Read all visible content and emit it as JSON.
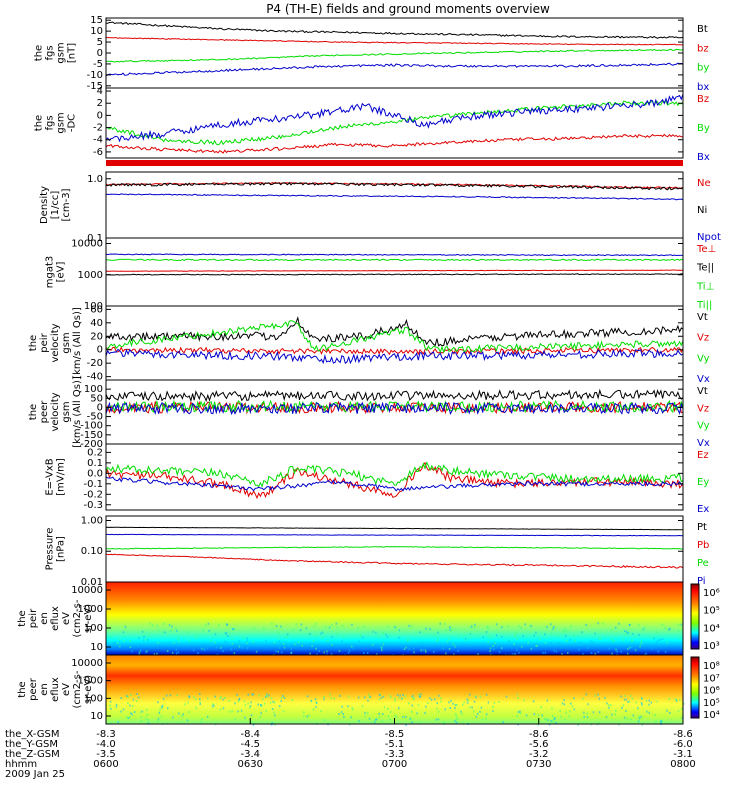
{
  "title": "P4 (TH-E) fields and ground moments overview",
  "colors": {
    "black": "#000000",
    "red": "#e00000",
    "green": "#00dd00",
    "blue": "#0000cc"
  },
  "chart_data": [
    {
      "id": "fgs-gsm",
      "type": "line",
      "ylabel": [
        "the",
        "fgs",
        "gsm",
        "[nT]"
      ],
      "yticks": [
        "15",
        "10",
        "5",
        "0",
        "-5",
        "-10",
        "-15"
      ],
      "ylim": [
        -16,
        16
      ],
      "series": [
        {
          "name": "Bt",
          "color": "black",
          "points": [
            [
              0,
              14
            ],
            [
              0.1,
              12.5
            ],
            [
              0.2,
              11
            ],
            [
              0.3,
              10
            ],
            [
              0.4,
              9.5
            ],
            [
              0.5,
              9
            ],
            [
              0.6,
              8.5
            ],
            [
              0.7,
              8
            ],
            [
              0.8,
              7.5
            ],
            [
              0.9,
              7.3
            ],
            [
              1,
              7
            ]
          ],
          "noise": 0.4
        },
        {
          "name": "bz",
          "color": "red",
          "points": [
            [
              0,
              7
            ],
            [
              0.2,
              6
            ],
            [
              0.4,
              5
            ],
            [
              0.6,
              4.5
            ],
            [
              0.8,
              4
            ],
            [
              1,
              3.8
            ]
          ],
          "noise": 0.2
        },
        {
          "name": "by",
          "color": "green",
          "points": [
            [
              0,
              -4
            ],
            [
              0.2,
              -3
            ],
            [
              0.4,
              -1
            ],
            [
              0.6,
              0
            ],
            [
              0.8,
              1
            ],
            [
              1,
              1.5
            ]
          ],
          "noise": 0.3
        },
        {
          "name": "bx",
          "color": "blue",
          "points": [
            [
              0,
              -10
            ],
            [
              0.2,
              -8
            ],
            [
              0.4,
              -6
            ],
            [
              0.5,
              -5.5
            ],
            [
              0.6,
              -6
            ],
            [
              0.8,
              -6
            ],
            [
              1,
              -5
            ]
          ],
          "noise": 0.5
        }
      ]
    },
    {
      "id": "fgs-gsm-dc",
      "type": "line",
      "ylabel": [
        "the",
        "fgs",
        "gsm",
        "-DC"
      ],
      "yticks": [
        "4",
        "2",
        "0",
        "-2",
        "-4",
        "-6"
      ],
      "ylim": [
        -7,
        4.5
      ],
      "series": [
        {
          "name": "Bz",
          "color": "red",
          "points": [
            [
              0,
              -5
            ],
            [
              0.1,
              -5.6
            ],
            [
              0.2,
              -6
            ],
            [
              0.3,
              -5.5
            ],
            [
              0.4,
              -4.8
            ],
            [
              0.5,
              -5
            ],
            [
              0.6,
              -4.4
            ],
            [
              0.7,
              -4
            ],
            [
              0.8,
              -3.8
            ],
            [
              0.9,
              -3.4
            ],
            [
              1,
              -3.3
            ]
          ],
          "noise": 0.25
        },
        {
          "name": "By",
          "color": "green",
          "points": [
            [
              0,
              -2
            ],
            [
              0.1,
              -4
            ],
            [
              0.2,
              -4.5
            ],
            [
              0.3,
              -3.5
            ],
            [
              0.4,
              -2
            ],
            [
              0.5,
              -1
            ],
            [
              0.6,
              0
            ],
            [
              0.7,
              0.8
            ],
            [
              0.8,
              1.5
            ],
            [
              0.9,
              2
            ],
            [
              1,
              2
            ]
          ],
          "noise": 0.35
        },
        {
          "name": "Bx",
          "color": "blue",
          "points": [
            [
              0,
              -4
            ],
            [
              0.1,
              -3
            ],
            [
              0.2,
              -1.5
            ],
            [
              0.35,
              0
            ],
            [
              0.45,
              1.5
            ],
            [
              0.55,
              -1.5
            ],
            [
              0.65,
              0
            ],
            [
              0.75,
              0.8
            ],
            [
              0.85,
              1.3
            ],
            [
              0.95,
              2
            ],
            [
              1,
              3
            ]
          ],
          "noise": 0.6
        }
      ]
    },
    {
      "id": "density",
      "type": "line",
      "scale": "log",
      "ylabel": [
        "Density",
        "[1/cc]",
        "[cm-3]"
      ],
      "yticks": [
        "1.0",
        "0.1"
      ],
      "ytick_values": [
        1.0,
        0.1
      ],
      "ylim": [
        0.1,
        1.3
      ],
      "series": [
        {
          "name": "Ne",
          "color": "red",
          "points": [
            [
              0,
              0.8
            ],
            [
              0.3,
              0.85
            ],
            [
              0.6,
              0.8
            ],
            [
              1,
              0.7
            ]
          ],
          "noise": 0.02
        },
        {
          "name": "Ni",
          "color": "black",
          "points": [
            [
              0,
              0.78
            ],
            [
              0.3,
              0.83
            ],
            [
              0.6,
              0.78
            ],
            [
              1,
              0.68
            ]
          ],
          "noise": 0.04
        },
        {
          "name": "Npot",
          "color": "blue",
          "points": [
            [
              0,
              0.55
            ],
            [
              0.3,
              0.52
            ],
            [
              0.6,
              0.5
            ],
            [
              1,
              0.45
            ]
          ],
          "noise": 0.01
        }
      ]
    },
    {
      "id": "temperature",
      "type": "line",
      "scale": "log",
      "ylabel": [
        "mgat3",
        "[eV]"
      ],
      "yticks": [
        "10000",
        "1000",
        "100"
      ],
      "ytick_values": [
        10000,
        1000,
        100
      ],
      "ylim": [
        100,
        15000
      ],
      "series": [
        {
          "name": "Te⊥",
          "color": "red",
          "points": [
            [
              0,
              1300
            ],
            [
              1,
              1400
            ]
          ],
          "noise": 20
        },
        {
          "name": "Te||",
          "color": "black",
          "points": [
            [
              0,
              1000
            ],
            [
              1,
              1050
            ]
          ],
          "noise": 30
        },
        {
          "name": "Ti⊥",
          "color": "green",
          "points": [
            [
              0,
              3000
            ],
            [
              1,
              3000
            ]
          ],
          "noise": 150
        },
        {
          "name": "Ti||",
          "color": "blue",
          "points": [
            [
              0,
              4500
            ],
            [
              1,
              4200
            ]
          ],
          "noise": 150
        }
      ],
      "legend_extra": [
        "Ti⊥",
        "Ti||"
      ]
    },
    {
      "id": "peir-velocity",
      "type": "line",
      "ylabel": [
        "the",
        "peir",
        "velocity",
        "gsm",
        "[km/s (All Qs)]"
      ],
      "yticks": [
        "60",
        "40",
        "20",
        "0",
        "-20",
        "-40"
      ],
      "ylim": [
        -45,
        65
      ],
      "series": [
        {
          "name": "Vt",
          "color": "black",
          "points": [
            [
              0,
              20
            ],
            [
              0.3,
              20
            ],
            [
              0.33,
              45
            ],
            [
              0.36,
              15
            ],
            [
              0.45,
              20
            ],
            [
              0.52,
              38
            ],
            [
              0.56,
              10
            ],
            [
              0.62,
              15
            ],
            [
              0.7,
              20
            ],
            [
              1,
              30
            ]
          ],
          "noise": 6
        },
        {
          "name": "Vz",
          "color": "red",
          "points": [
            [
              0,
              0
            ],
            [
              0.5,
              -3
            ],
            [
              1,
              0
            ]
          ],
          "noise": 4
        },
        {
          "name": "Vy",
          "color": "green",
          "points": [
            [
              0,
              5
            ],
            [
              0.33,
              40
            ],
            [
              0.36,
              0
            ],
            [
              0.52,
              30
            ],
            [
              0.56,
              0
            ],
            [
              1,
              10
            ]
          ],
          "noise": 5
        },
        {
          "name": "Vx",
          "color": "blue",
          "points": [
            [
              0,
              -5
            ],
            [
              0.3,
              -10
            ],
            [
              0.4,
              -15
            ],
            [
              0.5,
              -10
            ],
            [
              1,
              -5
            ]
          ],
          "noise": 6
        }
      ]
    },
    {
      "id": "peer-velocity",
      "type": "line",
      "ylabel": [
        "the",
        "peer",
        "velocity",
        "gsm",
        "[km/s (All Qs)]"
      ],
      "yticks": [
        "100",
        "50",
        "0",
        "-50",
        "-100",
        "-150",
        "-200"
      ],
      "ylim": [
        -200,
        150
      ],
      "series": [
        {
          "name": "Vt",
          "color": "black",
          "points": [
            [
              0,
              60
            ],
            [
              1,
              70
            ]
          ],
          "noise": 25
        },
        {
          "name": "Vz",
          "color": "red",
          "points": [
            [
              0,
              0
            ],
            [
              1,
              0
            ]
          ],
          "noise": 30
        },
        {
          "name": "Vy",
          "color": "green",
          "points": [
            [
              0,
              5
            ],
            [
              1,
              5
            ]
          ],
          "noise": 30
        },
        {
          "name": "Vx",
          "color": "blue",
          "points": [
            [
              0,
              -5
            ],
            [
              1,
              -5
            ]
          ],
          "noise": 30
        }
      ]
    },
    {
      "id": "efield",
      "type": "line",
      "ylabel": [
        "E=-VxB",
        "[mV/m]"
      ],
      "yticks": [
        "0.2",
        "0.1",
        "0.0",
        "-0.1",
        "-0.2",
        "-0.3"
      ],
      "ylim": [
        -0.35,
        0.28
      ],
      "series": [
        {
          "name": "Ez",
          "color": "red",
          "points": [
            [
              0,
              0
            ],
            [
              0.1,
              -0.03
            ],
            [
              0.2,
              -0.1
            ],
            [
              0.27,
              -0.22
            ],
            [
              0.33,
              0.02
            ],
            [
              0.42,
              -0.1
            ],
            [
              0.5,
              -0.2
            ],
            [
              0.55,
              0.08
            ],
            [
              0.6,
              -0.05
            ],
            [
              0.7,
              -0.1
            ],
            [
              0.85,
              -0.08
            ],
            [
              1,
              -0.1
            ]
          ],
          "noise": 0.04
        },
        {
          "name": "Ey",
          "color": "green",
          "points": [
            [
              0,
              0.05
            ],
            [
              0.1,
              0.02
            ],
            [
              0.2,
              0
            ],
            [
              0.27,
              -0.1
            ],
            [
              0.33,
              0.05
            ],
            [
              0.42,
              0
            ],
            [
              0.5,
              -0.1
            ],
            [
              0.55,
              0.08
            ],
            [
              0.6,
              0.02
            ],
            [
              0.8,
              -0.05
            ],
            [
              1,
              -0.05
            ]
          ],
          "noise": 0.04
        },
        {
          "name": "Ex",
          "color": "blue",
          "points": [
            [
              0,
              -0.05
            ],
            [
              0.27,
              -0.15
            ],
            [
              0.4,
              -0.08
            ],
            [
              0.5,
              -0.15
            ],
            [
              0.7,
              -0.1
            ],
            [
              1,
              -0.1
            ]
          ],
          "noise": 0.02
        }
      ]
    },
    {
      "id": "pressure",
      "type": "line",
      "scale": "log",
      "ylabel": [
        "Pressure",
        "[nPa]"
      ],
      "yticks": [
        "1.00",
        "0.10",
        "0.01"
      ],
      "ytick_values": [
        1.0,
        0.1,
        0.01
      ],
      "ylim": [
        0.01,
        1.4
      ],
      "series": [
        {
          "name": "Pt",
          "color": "black",
          "points": [
            [
              0,
              0.6
            ],
            [
              1,
              0.5
            ]
          ],
          "noise": 0.005
        },
        {
          "name": "Pb",
          "color": "red",
          "points": [
            [
              0,
              0.08
            ],
            [
              0.3,
              0.05
            ],
            [
              0.5,
              0.04
            ],
            [
              1,
              0.03
            ]
          ],
          "noise": 0.002
        },
        {
          "name": "Pe",
          "color": "green",
          "points": [
            [
              0,
              0.12
            ],
            [
              0.5,
              0.14
            ],
            [
              1,
              0.12
            ]
          ],
          "noise": 0.003
        },
        {
          "name": "Pi",
          "color": "blue",
          "points": [
            [
              0,
              0.35
            ],
            [
              1,
              0.32
            ]
          ],
          "noise": 0.005
        }
      ]
    },
    {
      "id": "peir-en-eflux",
      "type": "heatmap",
      "ylabel": [
        "the",
        "peir",
        "en",
        "eflux",
        "eV",
        "(cm2-s-",
        "sr-eV)"
      ],
      "yticks": [
        "10000",
        "1000",
        "100",
        "10"
      ],
      "colorbar_ticks": [
        "10⁶",
        "10⁵",
        "10⁴",
        "10³"
      ]
    },
    {
      "id": "peer-en-eflux",
      "type": "heatmap",
      "ylabel": [
        "the",
        "peer",
        "en",
        "eflux",
        "eV",
        "(cm2-s-",
        "sr-eV)"
      ],
      "yticks": [
        "10000",
        "1000",
        "100",
        "10"
      ],
      "colorbar_ticks": [
        "10⁸",
        "10⁷",
        "10⁶",
        "10⁵",
        "10⁴"
      ]
    }
  ],
  "xaxis": {
    "rows": [
      {
        "label": "the_X-GSM",
        "values": [
          "-8.3",
          "-8.4",
          "-8.5",
          "-8.6",
          "-8.6"
        ]
      },
      {
        "label": "the_Y-GSM",
        "values": [
          "-4.0",
          "-4.5",
          "-5.1",
          "-5.6",
          "-6.0"
        ]
      },
      {
        "label": "the_Z-GSM",
        "values": [
          "-3.5",
          "-3.4",
          "-3.3",
          "-3.2",
          "-3.1"
        ]
      },
      {
        "label": "hhmm",
        "values": [
          "0600",
          "0630",
          "0700",
          "0730",
          "0800"
        ]
      }
    ],
    "date": "2009 Jan 25"
  }
}
